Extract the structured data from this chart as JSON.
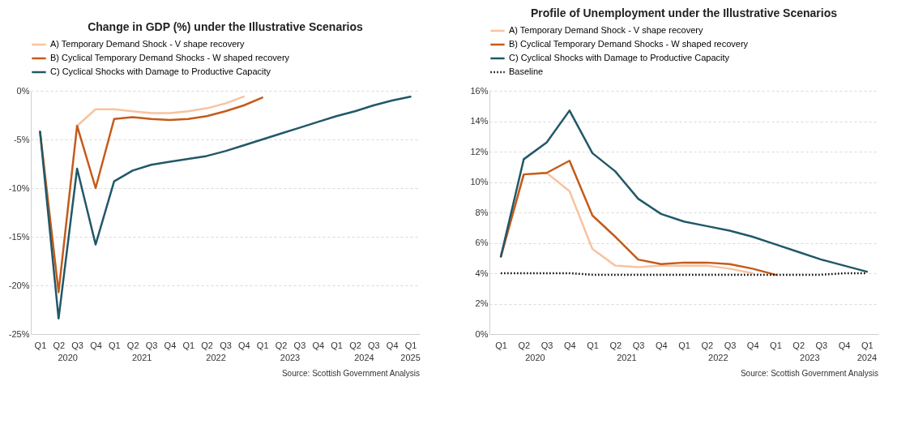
{
  "chart_data": [
    {
      "type": "line",
      "title": "Change in GDP (%) under the Illustrative Scenarios",
      "categories": [
        "Q1",
        "Q2",
        "Q3",
        "Q4",
        "Q1",
        "Q2",
        "Q3",
        "Q4",
        "Q1",
        "Q2",
        "Q3",
        "Q4",
        "Q1",
        "Q2",
        "Q3",
        "Q4",
        "Q1",
        "Q2",
        "Q3",
        "Q4",
        "Q1"
      ],
      "series": [
        {
          "name": "A) Temporary Demand Shock - V shape recovery",
          "color": "#f7c3a0",
          "line_style": "solid",
          "values": [
            null,
            null,
            -3.6,
            -1.9,
            -1.9,
            -2.1,
            -2.3,
            -2.3,
            -2.1,
            -1.8,
            -1.3,
            -0.6,
            null,
            null,
            null,
            null,
            null,
            null,
            null,
            null,
            null
          ]
        },
        {
          "name": "B) Cyclical Temporary Demand Shocks - W shaped recovery",
          "color": "#c55a1a",
          "line_style": "solid",
          "values": [
            -4.2,
            -20.7,
            -3.6,
            -10.0,
            -2.9,
            -2.7,
            -2.9,
            -3.0,
            -2.9,
            -2.6,
            -2.1,
            -1.5,
            -0.7,
            null,
            null,
            null,
            null,
            null,
            null,
            null,
            null
          ]
        },
        {
          "name": "C) Cyclical Shocks with Damage to Productive Capacity",
          "color": "#215868",
          "line_style": "solid",
          "values": [
            -4.2,
            -23.4,
            -8.0,
            -15.8,
            -9.3,
            -8.2,
            -7.6,
            -7.3,
            -7.0,
            -6.7,
            -6.2,
            -5.6,
            -5.0,
            -4.4,
            -3.8,
            -3.2,
            -2.6,
            -2.1,
            -1.5,
            -1.0,
            -0.6
          ]
        }
      ],
      "ylim": [
        -25,
        0
      ],
      "yticks": [
        {
          "value": -25,
          "label": "-25%"
        },
        {
          "value": -20,
          "label": "-20%"
        },
        {
          "value": -15,
          "label": "-15%"
        },
        {
          "value": -10,
          "label": "-10%"
        },
        {
          "value": -5,
          "label": "-5%"
        },
        {
          "value": 0,
          "label": "0%"
        }
      ],
      "grid": "y",
      "legend": "top",
      "annotations": [
        "2020",
        "2021",
        "2022",
        "2023",
        "2024",
        "2025",
        "Source: Scottish Government Analysis"
      ]
    },
    {
      "type": "line",
      "title": "Profile of Unemployment under the Illustrative Scenarios",
      "categories": [
        "Q1",
        "Q2",
        "Q3",
        "Q4",
        "Q1",
        "Q2",
        "Q3",
        "Q4",
        "Q1",
        "Q2",
        "Q3",
        "Q4",
        "Q1",
        "Q2",
        "Q3",
        "Q4",
        "Q1"
      ],
      "series": [
        {
          "name": "A) Temporary Demand Shock - V shape recovery",
          "color": "#f7c3a0",
          "line_style": "solid",
          "values": [
            5.1,
            10.5,
            10.6,
            9.4,
            5.6,
            4.5,
            4.4,
            4.5,
            4.5,
            4.5,
            4.3,
            4.0,
            null,
            null,
            null,
            null,
            null
          ]
        },
        {
          "name": "B) Cyclical Temporary Demand Shocks - W shaped recovery",
          "color": "#c55a1a",
          "line_style": "solid",
          "values": [
            5.1,
            10.5,
            10.6,
            11.4,
            7.8,
            6.4,
            4.9,
            4.6,
            4.7,
            4.7,
            4.6,
            4.3,
            3.9,
            null,
            null,
            null,
            null
          ]
        },
        {
          "name": "C) Cyclical Shocks with Damage to Productive Capacity",
          "color": "#215868",
          "line_style": "solid",
          "values": [
            5.1,
            11.5,
            12.6,
            14.7,
            11.9,
            10.7,
            8.9,
            7.9,
            7.4,
            7.1,
            6.8,
            6.4,
            5.9,
            5.4,
            4.9,
            4.5,
            4.1
          ]
        },
        {
          "name": "Baseline",
          "color": "#000000",
          "line_style": "dotted",
          "values": [
            4.0,
            4.0,
            4.0,
            4.0,
            3.9,
            3.9,
            3.9,
            3.9,
            3.9,
            3.9,
            3.9,
            3.9,
            3.9,
            3.9,
            3.9,
            4.0,
            4.0
          ]
        }
      ],
      "ylim": [
        0,
        16
      ],
      "yticks": [
        {
          "value": 0,
          "label": "0%"
        },
        {
          "value": 2,
          "label": "2%"
        },
        {
          "value": 4,
          "label": "4%"
        },
        {
          "value": 6,
          "label": "6%"
        },
        {
          "value": 8,
          "label": "8%"
        },
        {
          "value": 10,
          "label": "10%"
        },
        {
          "value": 12,
          "label": "12%"
        },
        {
          "value": 14,
          "label": "14%"
        },
        {
          "value": 16,
          "label": "16%"
        }
      ],
      "grid": "y",
      "legend": "top",
      "annotations": [
        "2020",
        "2021",
        "2022",
        "2023",
        "2024",
        "Source: Scottish Government Analysis"
      ]
    }
  ]
}
